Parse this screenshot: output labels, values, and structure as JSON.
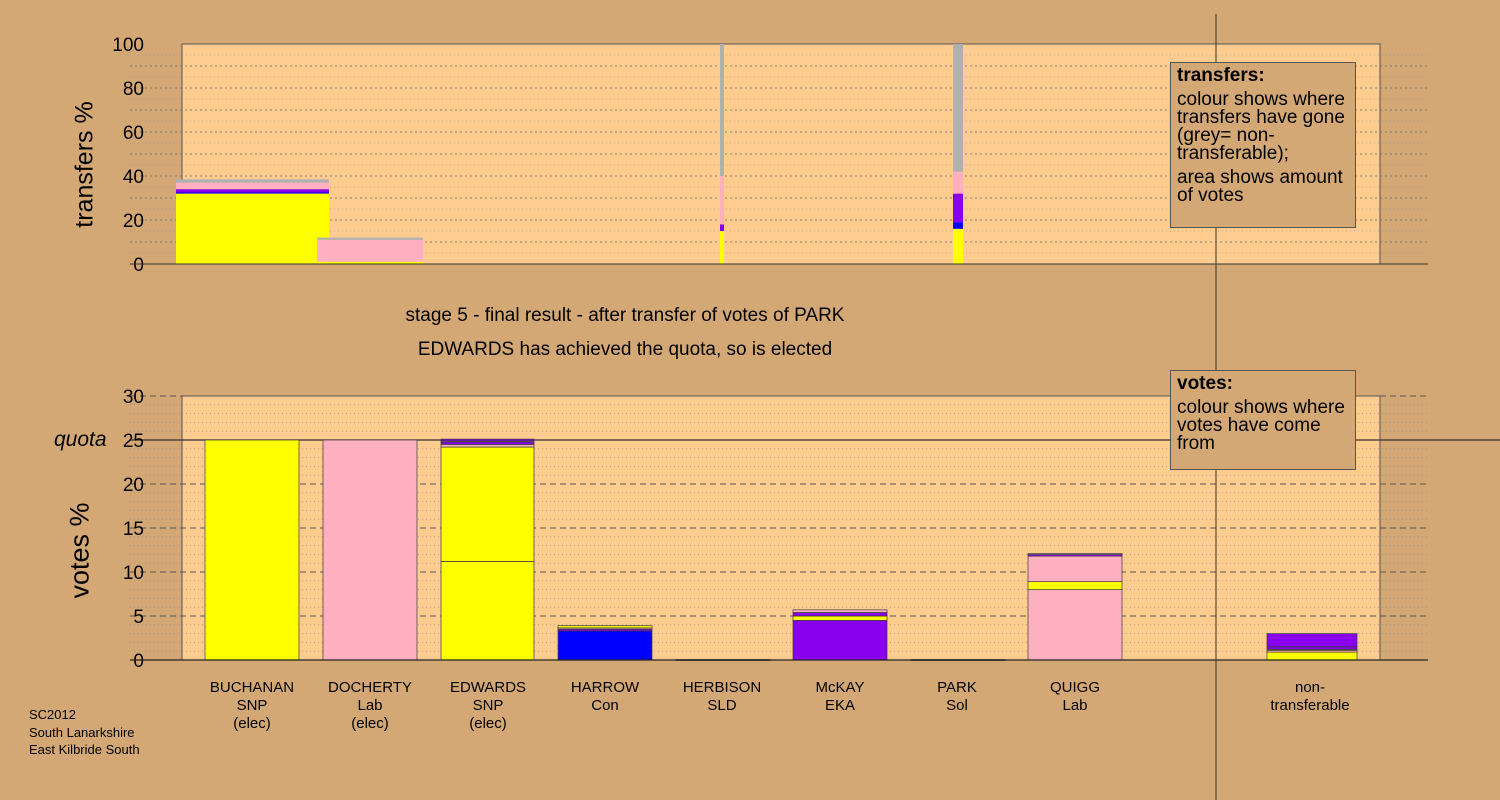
{
  "chart_data": [
    {
      "type": "bar",
      "ylabel": "transfers %",
      "ylim": [
        0,
        100
      ],
      "yticks": [
        0,
        20,
        40,
        60,
        80,
        100
      ],
      "segment_order": [
        "SNP",
        "Con",
        "EKA",
        "Lab",
        "non-transferable"
      ],
      "series_colors": {
        "SNP": "#ffff00",
        "Con": "#0000ff",
        "EKA": "#8800ee",
        "Lab": "#ffb0c0",
        "non-transferable": "#b0b0b0"
      },
      "transfers": [
        {
          "from": "BUCHANAN",
          "values": {
            "SNP": 32,
            "Con": 0.5,
            "EKA": 1.5,
            "Lab": 3,
            "non-transferable": 1.5
          }
        },
        {
          "from": "DOCHERTY",
          "values": {
            "SNP": 1,
            "Con": 0,
            "EKA": 0,
            "Lab": 10,
            "non-transferable": 1
          }
        },
        {
          "from": "HARROW",
          "values": {
            "SNP": 15,
            "Con": 0,
            "EKA": 3,
            "Lab": 22,
            "non-transferable": 60
          }
        },
        {
          "from": "PARK",
          "values": {
            "SNP": 16,
            "Con": 3,
            "EKA": 13,
            "Lab": 10,
            "non-transferable": 58
          }
        }
      ],
      "legend": {
        "title": "transfers:",
        "text1": "colour shows where transfers have gone (grey= non-transferable);",
        "text2": "area shows amount of votes"
      }
    },
    {
      "type": "bar",
      "ylabel": "votes %",
      "ylim": [
        0,
        30
      ],
      "yticks": [
        0,
        5,
        10,
        15,
        20,
        25,
        30
      ],
      "quota": 25,
      "quota_label": "quota",
      "categories": [
        "BUCHANAN",
        "DOCHERTY",
        "EDWARDS",
        "HARROW",
        "HERBISON",
        "McKAY",
        "PARK",
        "QUIGG",
        "non-transferable"
      ],
      "candidates": [
        {
          "name": "BUCHANAN",
          "party": "SNP",
          "status": "(elec)",
          "segments": [
            {
              "color": "#ffff00",
              "value": 25
            }
          ]
        },
        {
          "name": "DOCHERTY",
          "party": "Lab",
          "status": "(elec)",
          "segments": [
            {
              "color": "#ffb0c0",
              "value": 25
            }
          ]
        },
        {
          "name": "EDWARDS",
          "party": "SNP",
          "status": "(elec)",
          "segments": [
            {
              "color": "#ffff00",
              "value": 11.2
            },
            {
              "color": "#ffff00",
              "value": 13
            },
            {
              "color": "#ffb0c0",
              "value": 0.3
            },
            {
              "color": "#8800ee",
              "value": 0.3
            },
            {
              "color": "#ffb0c0",
              "value": 0.1
            },
            {
              "color": "#8800ee",
              "value": 0.2
            }
          ]
        },
        {
          "name": "HARROW",
          "party": "Con",
          "status": "",
          "segments": [
            {
              "color": "#0000ff",
              "value": 3.3
            },
            {
              "color": "#8800ee",
              "value": 0.2
            },
            {
              "color": "#ffb0c0",
              "value": 0.15
            },
            {
              "color": "#ffff00",
              "value": 0.25
            }
          ]
        },
        {
          "name": "HERBISON",
          "party": "SLD",
          "status": "",
          "segments": [
            {
              "color": "#ffb0c0",
              "value": 0.05
            }
          ]
        },
        {
          "name": "McKAY",
          "party": "EKA",
          "status": "",
          "segments": [
            {
              "color": "#8800ee",
              "value": 4.5
            },
            {
              "color": "#ffff00",
              "value": 0.5
            },
            {
              "color": "#8800ee",
              "value": 0.4
            },
            {
              "color": "#ffb0c0",
              "value": 0.3
            }
          ]
        },
        {
          "name": "PARK",
          "party": "Sol",
          "status": "",
          "segments": [
            {
              "color": "#ffb0c0",
              "value": 0.05
            }
          ]
        },
        {
          "name": "QUIGG",
          "party": "Lab",
          "status": "",
          "segments": [
            {
              "color": "#ffb0c0",
              "value": 8
            },
            {
              "color": "#ffff00",
              "value": 0.9
            },
            {
              "color": "#ffb0c0",
              "value": 2.9
            },
            {
              "color": "#8800ee",
              "value": 0.2
            },
            {
              "color": "#ffb0c0",
              "value": 0.1
            }
          ]
        },
        {
          "name": "non-",
          "party": "transferable",
          "status": "",
          "segments": [
            {
              "color": "#ffff00",
              "value": 0.9
            },
            {
              "color": "#ffb0c0",
              "value": 0.2
            },
            {
              "color": "#ffff00",
              "value": 0.1
            },
            {
              "color": "#8800ee",
              "value": 0.3
            },
            {
              "color": "#8800ee",
              "value": 1.5
            }
          ]
        }
      ],
      "legend": {
        "title": "votes:",
        "text1": "colour shows where votes have come from"
      }
    }
  ],
  "stage_text": "stage 5 - final result - after transfer of votes of PARK",
  "elected_text": "EDWARDS has achieved the quota, so is elected",
  "footer": [
    "SC2012",
    "South Lanarkshire",
    "East Kilbride South"
  ],
  "colors": {
    "background": "#d3a875",
    "plot_background": "#ffcc90"
  }
}
